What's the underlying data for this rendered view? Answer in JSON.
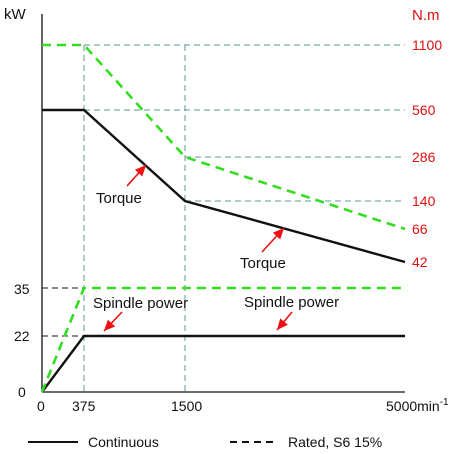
{
  "chart_data": {
    "type": "line",
    "y_left_label": "kW",
    "y_right_label": "N.m",
    "x_unit_label": "5000min",
    "x_unit_exp": "-1",
    "x_ticks": [
      "0",
      "375",
      "1500"
    ],
    "y_left_ticks": [
      "0",
      "22",
      "35"
    ],
    "y_right_ticks": [
      "1100",
      "560",
      "286",
      "140",
      "66",
      "42"
    ],
    "series": [
      {
        "name": "Continuous",
        "quantity": "power",
        "x": [
          0,
          375,
          5000
        ],
        "y": [
          0,
          22,
          22
        ]
      },
      {
        "name": "Rated, S6 15%",
        "quantity": "power",
        "x": [
          0,
          375,
          5000
        ],
        "y": [
          0,
          35,
          35
        ]
      },
      {
        "name": "Continuous",
        "quantity": "torque",
        "x": [
          0,
          375,
          1500,
          5000
        ],
        "y": [
          560,
          560,
          140,
          42
        ]
      },
      {
        "name": "Rated, S6 15%",
        "quantity": "torque",
        "x": [
          0,
          375,
          1500,
          5000
        ],
        "y": [
          1100,
          1100,
          286,
          66
        ]
      }
    ],
    "annotations": {
      "torque_1": "Torque",
      "torque_2": "Torque",
      "power_1": "Spindle power",
      "power_2": "Spindle power"
    },
    "legend": {
      "continuous": "Continuous",
      "rated": "Rated, S6 15%"
    },
    "colors": {
      "continuous": "#111111",
      "rated": "#33dd22",
      "grid": "#5a9a9a",
      "right_axis": "#e01010",
      "arrow": "#ee1111"
    }
  }
}
